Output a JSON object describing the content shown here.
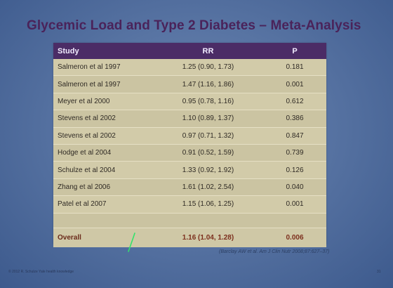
{
  "title": "Glycemic Load and Type 2 Diabetes – Meta-Analysis",
  "table": {
    "headers": [
      "Study",
      "RR",
      "P"
    ],
    "rows": [
      {
        "study": "Salmeron et al 1997",
        "rr": "1.25 (0.90, 1.73)",
        "p": "0.181"
      },
      {
        "study": "Salmeron et al 1997",
        "rr": "1.47 (1.16, 1.86)",
        "p": "0.001"
      },
      {
        "study": "Meyer et al 2000",
        "rr": "0.95 (0.78, 1.16)",
        "p": "0.612"
      },
      {
        "study": "Stevens et al 2002",
        "rr": "1.10 (0.89, 1.37)",
        "p": "0.386"
      },
      {
        "study": "Stevens et al 2002",
        "rr": "0.97 (0.71, 1.32)",
        "p": "0.847"
      },
      {
        "study": "Hodge et al 2004",
        "rr": "0.91 (0.52, 1.59)",
        "p": "0.739"
      },
      {
        "study": "Schulze et al 2004",
        "rr": "1.33 (0.92, 1.92)",
        "p": "0.126"
      },
      {
        "study": "Zhang et al 2006",
        "rr": "1.61 (1.02, 2.54)",
        "p": "0.040"
      },
      {
        "study": "Patel et al 2007",
        "rr": "1.15 (1.06, 1.25)",
        "p": "0.001"
      }
    ],
    "overall": {
      "study": "Overall",
      "rr": "1.16 (1.04, 1.28)",
      "p": "0.006"
    }
  },
  "citation": "(Barclay AW et al. Am J Clin Nutr 2008;87:627–37)",
  "footer": {
    "left": "© 2012 R. Schulze  Yale health knowledge",
    "page": "31"
  },
  "colors": {
    "header_bg": "#4b2c66",
    "title": "#4a235a",
    "table_bg": "#cdc7a6",
    "overall_text": "#7c2f1d",
    "laser": "#33e36b"
  }
}
